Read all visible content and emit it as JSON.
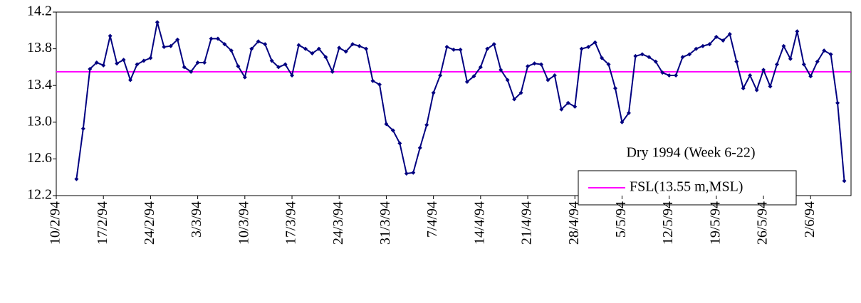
{
  "chart_data": {
    "type": "line",
    "annotation": "Dry 1994 (Week 6-22)",
    "x": [
      3,
      4,
      5,
      6,
      7,
      8,
      9,
      10,
      11,
      12,
      13,
      14,
      15,
      16,
      17,
      18,
      19,
      20,
      21,
      22,
      23,
      24,
      25,
      26,
      27,
      28,
      29,
      30,
      31,
      32,
      33,
      34,
      35,
      36,
      37,
      38,
      39,
      40,
      41,
      42,
      43,
      44,
      45,
      46,
      47,
      48,
      49,
      50,
      51,
      52,
      53,
      54,
      55,
      56,
      57,
      58,
      59,
      60,
      61,
      62,
      63,
      64,
      65,
      66,
      67,
      68,
      69,
      70,
      71,
      72,
      73,
      74,
      75,
      76,
      77,
      78,
      79,
      80,
      81,
      82,
      83,
      84,
      85,
      86,
      87,
      88,
      89,
      90,
      91,
      92,
      93,
      94,
      95,
      96,
      97,
      98,
      99,
      100,
      101,
      102,
      103,
      104,
      105,
      106,
      107,
      108,
      109,
      110,
      111,
      112,
      113,
      114,
      115,
      116,
      117
    ],
    "series": [
      {
        "color": "#000080",
        "values": [
          12.38,
          12.93,
          13.58,
          13.65,
          13.62,
          13.94,
          13.64,
          13.68,
          13.46,
          13.63,
          13.67,
          13.7,
          14.09,
          13.82,
          13.83,
          13.9,
          13.6,
          13.55,
          13.65,
          13.65,
          13.91,
          13.91,
          13.85,
          13.78,
          13.61,
          13.49,
          13.8,
          13.88,
          13.85,
          13.67,
          13.6,
          13.63,
          13.51,
          13.84,
          13.8,
          13.75,
          13.8,
          13.71,
          13.55,
          13.81,
          13.77,
          13.85,
          13.83,
          13.8,
          13.45,
          13.41,
          12.98,
          12.91,
          12.77,
          12.44,
          12.45,
          12.72,
          12.97,
          13.32,
          13.51,
          13.82,
          13.79,
          13.79,
          13.44,
          13.5,
          13.6,
          13.8,
          13.85,
          13.57,
          13.46,
          13.25,
          13.32,
          13.61,
          13.64,
          13.63,
          13.46,
          13.51,
          13.14,
          13.21,
          13.17,
          13.8,
          13.82,
          13.87,
          13.7,
          13.63,
          13.37,
          13.0,
          13.1,
          13.72,
          13.74,
          13.71,
          13.66,
          13.54,
          13.51,
          13.51,
          13.71,
          13.74,
          13.8,
          13.83,
          13.85,
          13.93,
          13.89,
          13.96,
          13.66,
          13.37,
          13.51,
          13.35,
          13.57,
          13.39,
          13.63,
          13.83,
          13.69,
          13.99,
          13.63,
          13.5,
          13.66,
          13.78,
          13.74,
          13.21,
          12.36
        ]
      }
    ],
    "reference_line": {
      "name": "FSL(13.55 m,MSL)",
      "value": 13.55,
      "color": "#ff00ff"
    },
    "xlim": [
      0,
      118
    ],
    "xticks": [
      {
        "value": 0,
        "label": "10/2/94"
      },
      {
        "value": 7,
        "label": "17/2/94"
      },
      {
        "value": 14,
        "label": "24/2/94"
      },
      {
        "value": 21,
        "label": "3/3/94"
      },
      {
        "value": 28,
        "label": "10/3/94"
      },
      {
        "value": 35,
        "label": "17/3/94"
      },
      {
        "value": 42,
        "label": "24/3/94"
      },
      {
        "value": 49,
        "label": "31/3/94"
      },
      {
        "value": 56,
        "label": "7/4/94"
      },
      {
        "value": 63,
        "label": "14/4/94"
      },
      {
        "value": 70,
        "label": "21/4/94"
      },
      {
        "value": 77,
        "label": "28/4/94"
      },
      {
        "value": 84,
        "label": "5/5/94"
      },
      {
        "value": 91,
        "label": "12/5/94"
      },
      {
        "value": 98,
        "label": "19/5/94"
      },
      {
        "value": 105,
        "label": "26/5/94"
      },
      {
        "value": 112,
        "label": "2/6/94"
      }
    ],
    "ylim": [
      12.2,
      14.2
    ],
    "yticks": [
      12.2,
      12.6,
      {
        "value": 13,
        "label": "13.0"
      },
      13.4,
      13.8,
      14.2
    ]
  }
}
